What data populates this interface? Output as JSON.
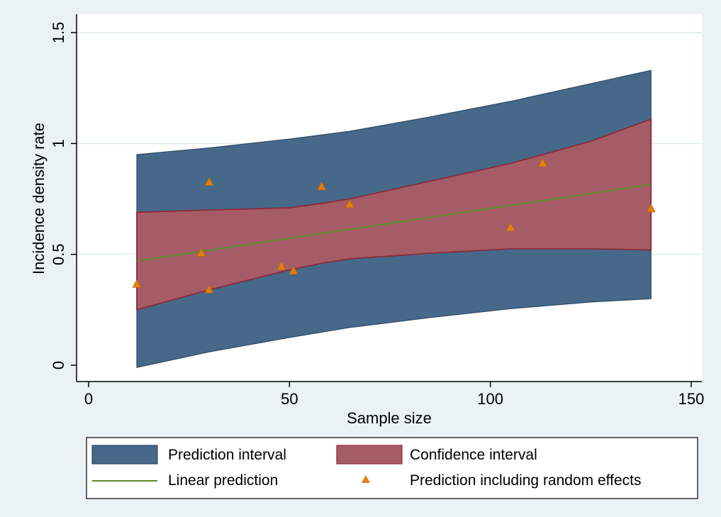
{
  "chart_data": {
    "type": "line",
    "xlabel": "Sample size",
    "ylabel": "Incidence density rate",
    "xlim": [
      0,
      150
    ],
    "ylim": [
      0,
      1.5
    ],
    "x_ticks": [
      0,
      50,
      100,
      150
    ],
    "x_tick_labels": [
      "0",
      "50",
      "100",
      "150"
    ],
    "y_ticks": [
      0,
      0.5,
      1,
      1.5
    ],
    "y_tick_labels": [
      "0",
      "0.5",
      "1",
      "1.5"
    ],
    "grid": true,
    "legend_position": "bottom",
    "colors": {
      "background": "#eaf2f3",
      "grid": "#e0ebef",
      "prediction_interval": "#46698a",
      "confidence_interval": "#a55c66",
      "confidence_edge": "#8b2a3a",
      "linear_prediction": "#5c8a2c",
      "random_effects": "#e08010"
    },
    "series": [
      {
        "name": "Prediction interval",
        "kind": "band",
        "x": [
          12,
          30,
          50,
          65,
          85,
          105,
          125,
          140
        ],
        "lower": [
          -0.01,
          0.06,
          0.125,
          0.17,
          0.215,
          0.255,
          0.285,
          0.3
        ],
        "upper": [
          0.95,
          0.98,
          1.02,
          1.055,
          1.12,
          1.19,
          1.27,
          1.33
        ]
      },
      {
        "name": "Confidence interval",
        "kind": "band",
        "x": [
          12,
          30,
          50,
          58,
          65,
          85,
          105,
          125,
          140
        ],
        "lower": [
          0.25,
          0.34,
          0.43,
          0.46,
          0.48,
          0.505,
          0.525,
          0.525,
          0.52
        ],
        "upper": [
          0.69,
          0.7,
          0.71,
          0.73,
          0.75,
          0.83,
          0.91,
          1.01,
          1.11
        ]
      },
      {
        "name": "Linear prediction",
        "kind": "line",
        "x": [
          12,
          140
        ],
        "y": [
          0.47,
          0.815
        ]
      },
      {
        "name": "Prediction including random effects",
        "kind": "scatter",
        "x": [
          12,
          28,
          30,
          30,
          48,
          51,
          58,
          65,
          105,
          113,
          140
        ],
        "y": [
          0.365,
          0.505,
          0.825,
          0.34,
          0.445,
          0.425,
          0.805,
          0.725,
          0.62,
          0.91,
          0.705
        ]
      }
    ]
  }
}
